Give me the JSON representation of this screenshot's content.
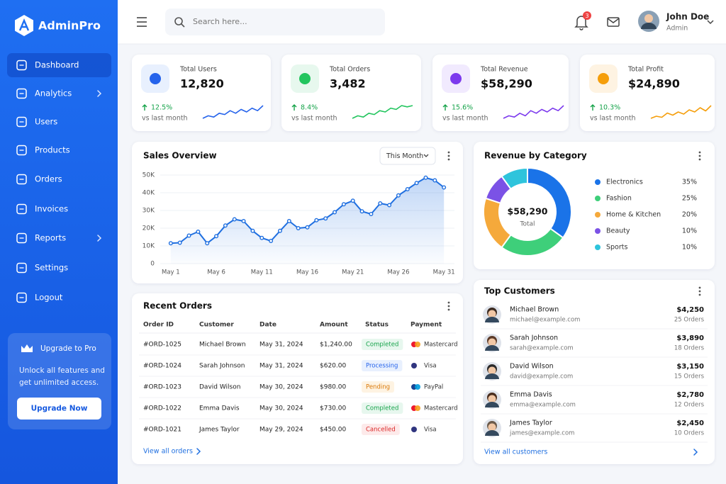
{
  "sidebar": {
    "brand": "AdminPro",
    "nav": [
      {
        "label": "Dashboard",
        "active": true
      },
      {
        "label": "Analytics",
        "submenu": true
      },
      {
        "label": "Users"
      },
      {
        "label": "Products"
      },
      {
        "label": "Orders"
      },
      {
        "label": "Invoices"
      },
      {
        "label": "Reports",
        "submenu": true
      },
      {
        "label": "Settings"
      },
      {
        "label": "Logout"
      }
    ],
    "upgrade": {
      "title": "Upgrade to Pro",
      "text": [
        "Unlock all features and",
        "get unlimited access."
      ],
      "button": "Upgrade Now"
    }
  },
  "header": {
    "search_placeholder": "Search here...",
    "notification_count": "3",
    "user": {
      "name": "John Doe",
      "role": "Admin"
    }
  },
  "stats": [
    {
      "label": "Total Users",
      "value": "12,820",
      "change": "12.5%",
      "note": "vs last month",
      "color": "#2563eb",
      "icon_bg": "#e8f0fe",
      "sparkline": [
        3,
        4,
        3.5,
        5,
        4.5,
        6,
        5,
        6.5,
        5.5,
        7,
        6,
        8
      ]
    },
    {
      "label": "Total Orders",
      "value": "3,482",
      "change": "8.4%",
      "note": "vs last month",
      "color": "#22c55e",
      "icon_bg": "#e7f8ee",
      "sparkline": [
        2,
        3,
        2.5,
        4,
        3.5,
        5,
        4.5,
        6,
        5.5,
        7,
        6.5,
        7
      ]
    },
    {
      "label": "Total Revenue",
      "value": "$58,290",
      "change": "15.6%",
      "note": "vs last month",
      "color": "#7c3aed",
      "icon_bg": "#f1eafe",
      "sparkline": [
        2,
        3,
        2.5,
        4,
        3,
        5,
        4,
        5.5,
        4.5,
        6,
        5,
        7
      ]
    },
    {
      "label": "Total Profit",
      "value": "$24,890",
      "change": "10.3%",
      "note": "vs last month",
      "color": "#f59e0b",
      "icon_bg": "#fef3e2",
      "sparkline": [
        2,
        3,
        2.5,
        4.5,
        3.5,
        5,
        4,
        6,
        5,
        7,
        5.5,
        8
      ]
    }
  ],
  "sales_overview": {
    "type": "line",
    "title": "Sales Overview",
    "filter": "This Month",
    "color": "#1f6fe0",
    "x": [
      1,
      2,
      3,
      4,
      5,
      6,
      7,
      8,
      9,
      10,
      11,
      12,
      13,
      14,
      15,
      16,
      17,
      18,
      19,
      20,
      21,
      22,
      23,
      24,
      25,
      26,
      27,
      28,
      29,
      30,
      31
    ],
    "values": [
      11500,
      11800,
      15800,
      18000,
      11500,
      15500,
      21500,
      25000,
      24000,
      18500,
      14500,
      12800,
      18500,
      24000,
      20000,
      20500,
      24500,
      25500,
      29000,
      33500,
      35500,
      29500,
      28000,
      34000,
      33000,
      38500,
      42000,
      45500,
      48500,
      47000,
      43000
    ],
    "xlim": [
      0,
      32
    ],
    "xticks": [
      {
        "value": 1,
        "label": "May 1"
      },
      {
        "value": 6,
        "label": "May 6"
      },
      {
        "value": 11,
        "label": "May 11"
      },
      {
        "value": 16,
        "label": "May 16"
      },
      {
        "value": 21,
        "label": "May 21"
      },
      {
        "value": 26,
        "label": "May 26"
      },
      {
        "value": 31,
        "label": "May 31"
      }
    ],
    "ylim": [
      0,
      50000
    ],
    "yticks": [
      0,
      {
        "value": 10000,
        "label": "10K"
      },
      {
        "value": 20000,
        "label": "20K"
      },
      {
        "value": 30000,
        "label": "30K"
      },
      {
        "value": 40000,
        "label": "40K"
      },
      {
        "value": 50000,
        "label": "50K"
      }
    ],
    "grid": true
  },
  "revenue_by_category": {
    "type": "pie",
    "title": "Revenue by Category",
    "total": "$58,290",
    "total_label": "Total",
    "categories": [
      "Electronics",
      "Fashion",
      "Home & Kitchen",
      "Beauty",
      "Sports"
    ],
    "values": [
      35,
      25,
      20,
      10,
      10
    ],
    "value_labels": [
      "35%",
      "25%",
      "20%",
      "10%",
      "10%"
    ],
    "colors": [
      "#1a73e8",
      "#3ecf7a",
      "#f5a93b",
      "#7b52e6",
      "#2ec4dc"
    ]
  },
  "recent_orders": {
    "title": "Recent Orders",
    "columns": [
      "Order ID",
      "Customer",
      "Date",
      "Amount",
      "Status",
      "Payment"
    ],
    "rows": [
      {
        "id": "#ORD-1025",
        "customer": "Michael Brown",
        "date": "May 31, 2024",
        "amount": "$1,240.00",
        "status": {
          "text": "Completed",
          "color": "#16a34a",
          "bg": "#e7f7ee"
        },
        "payment": {
          "name": "Mastercard",
          "icon_colors": [
            "#eb001b",
            "#f79e1b"
          ]
        }
      },
      {
        "id": "#ORD-1024",
        "customer": "Sarah Johnson",
        "date": "May 31, 2024",
        "amount": "$620.00",
        "status": {
          "text": "Processing",
          "color": "#2563eb",
          "bg": "#e8f0fe"
        },
        "payment": {
          "name": "Visa",
          "icon_colors": [
            "#1a1f71"
          ]
        }
      },
      {
        "id": "#ORD-1023",
        "customer": "David Wilson",
        "date": "May 30, 2024",
        "amount": "$980.00",
        "status": {
          "text": "Pending",
          "color": "#d97706",
          "bg": "#fef3e2"
        },
        "payment": {
          "name": "PayPal",
          "icon_colors": [
            "#003087",
            "#009cde"
          ]
        }
      },
      {
        "id": "#ORD-1022",
        "customer": "Emma Davis",
        "date": "May 30, 2024",
        "amount": "$730.00",
        "status": {
          "text": "Completed",
          "color": "#16a34a",
          "bg": "#e7f7ee"
        },
        "payment": {
          "name": "Mastercard",
          "icon_colors": [
            "#eb001b",
            "#f79e1b"
          ]
        }
      },
      {
        "id": "#ORD-1021",
        "customer": "James Taylor",
        "date": "May 29, 2024",
        "amount": "$450.00",
        "status": {
          "text": "Cancelled",
          "color": "#dc2626",
          "bg": "#fdeaea"
        },
        "payment": {
          "name": "Visa",
          "icon_colors": [
            "#1a1f71"
          ]
        }
      }
    ],
    "link": "View all orders"
  },
  "top_customers": {
    "title": "Top Customers",
    "rows": [
      {
        "name": "Michael Brown",
        "email": "michael@example.com",
        "amount": "$4,250",
        "orders": "25 Orders"
      },
      {
        "name": "Sarah Johnson",
        "email": "sarah@example.com",
        "amount": "$3,890",
        "orders": "18 Orders"
      },
      {
        "name": "David Wilson",
        "email": "david@example.com",
        "amount": "$3,150",
        "orders": "15 Orders"
      },
      {
        "name": "Emma Davis",
        "email": "emma@example.com",
        "amount": "$2,780",
        "orders": "12 Orders"
      },
      {
        "name": "James Taylor",
        "email": "james@example.com",
        "amount": "$2,450",
        "orders": "10 Orders"
      }
    ],
    "link": "View all customers"
  }
}
